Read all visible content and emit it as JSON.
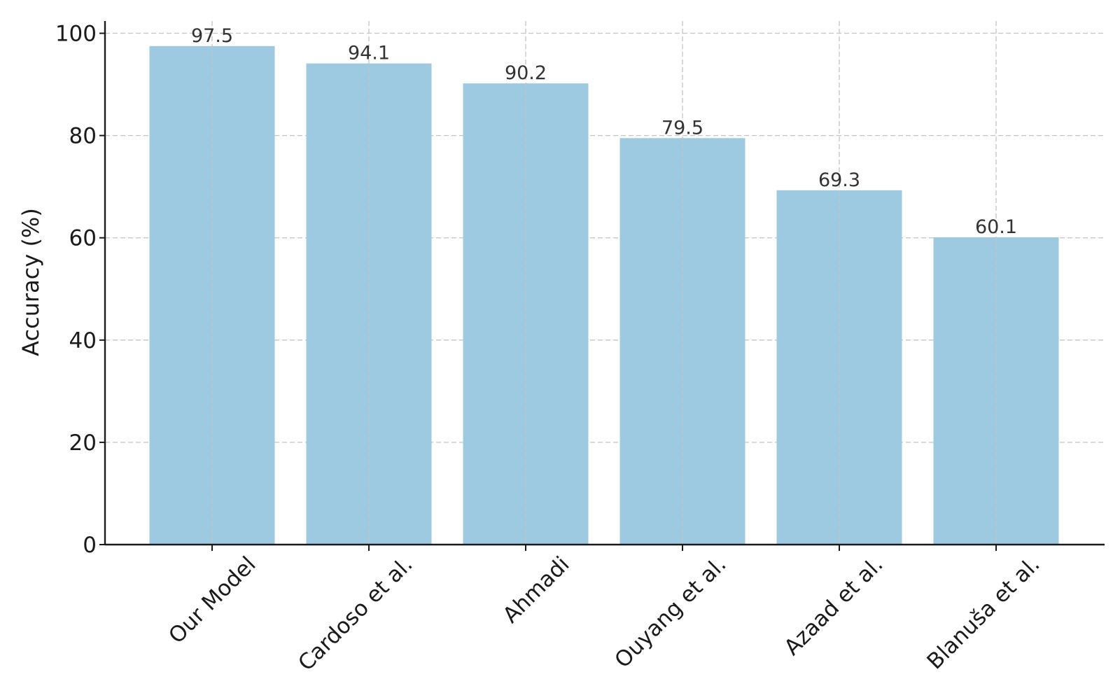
{
  "chart_data": {
    "type": "bar",
    "title": "",
    "xlabel": "",
    "ylabel": "Accuracy (%)",
    "categories": [
      "Our Model",
      "Cardoso et al.",
      "Ahmadi",
      "Ouyang et al.",
      "Azaad et al.",
      "Blanuša et al."
    ],
    "values": [
      97.5,
      94.1,
      90.2,
      79.5,
      69.3,
      60.1
    ],
    "value_labels": [
      "97.5",
      "94.1",
      "90.2",
      "79.5",
      "69.3",
      "60.1"
    ],
    "ylim": [
      0,
      102.4
    ],
    "yticks": [
      0,
      20,
      40,
      60,
      80,
      100
    ],
    "ytick_labels": [
      "0",
      "20",
      "40",
      "60",
      "80",
      "100"
    ],
    "grid": true,
    "legend": "none",
    "bar_color": "#9ecae1",
    "xtick_rotation_deg": 45
  }
}
